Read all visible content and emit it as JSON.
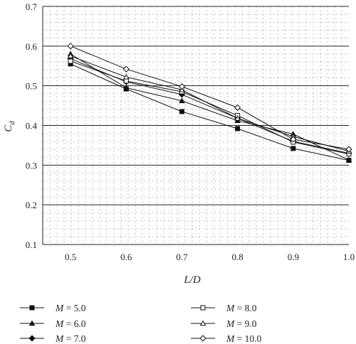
{
  "chart_data": {
    "type": "line",
    "xlabel": "L/D",
    "ylabel_main": "C",
    "ylabel_sub": "d",
    "x": [
      0.5,
      0.6,
      0.7,
      0.8,
      0.9,
      1.0
    ],
    "x_tick_labels": [
      "0.5",
      "0.6",
      "0.7",
      "0.8",
      "0.9",
      "1.0"
    ],
    "xlim": [
      0.45,
      1.0
    ],
    "ylim": [
      0.1,
      0.7
    ],
    "y_ticks": [
      0.1,
      0.2,
      0.3,
      0.4,
      0.5,
      0.6,
      0.7
    ],
    "y_tick_labels": [
      "0.1",
      "0.2",
      "0.3",
      "0.4",
      "0.5",
      "0.6",
      "0.7"
    ],
    "grid": "solid horizontal lines at major ticks, dotted minor grid",
    "legend_position": "bottom",
    "series": [
      {
        "name": "M = 5.0",
        "marker": "filled-square",
        "values": [
          0.555,
          0.492,
          0.435,
          0.392,
          0.342,
          0.312
        ]
      },
      {
        "name": "M = 6.0",
        "marker": "filled-triangle",
        "values": [
          0.58,
          0.495,
          0.462,
          0.412,
          0.378,
          0.313
        ]
      },
      {
        "name": "M = 7.0",
        "marker": "filled-diamond",
        "values": [
          0.568,
          0.51,
          0.478,
          0.418,
          0.36,
          0.33
        ]
      },
      {
        "name": "M = 8.0",
        "marker": "open-square",
        "values": [
          0.562,
          0.512,
          0.485,
          0.425,
          0.358,
          0.328
        ]
      },
      {
        "name": "M = 9.0",
        "marker": "open-triangle",
        "values": [
          0.575,
          0.522,
          0.49,
          0.418,
          0.372,
          0.335
        ]
      },
      {
        "name": "M = 10.0",
        "marker": "open-diamond",
        "values": [
          0.6,
          0.542,
          0.498,
          0.445,
          0.365,
          0.34
        ]
      }
    ]
  }
}
